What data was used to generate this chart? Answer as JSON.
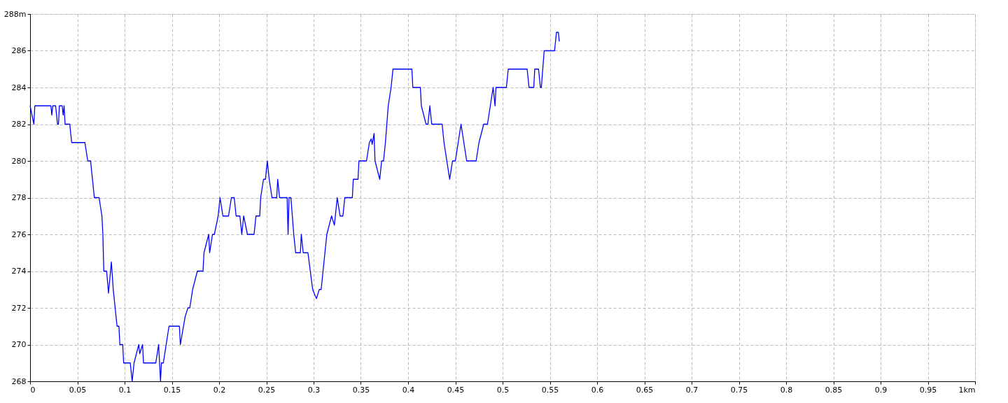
{
  "chart_data": {
    "type": "line",
    "xlim": [
      0,
      1
    ],
    "ylim": [
      268,
      288
    ],
    "xticks": [
      0,
      0.05,
      0.1,
      0.15,
      0.2,
      0.25,
      0.3,
      0.35,
      0.4,
      0.45,
      0.5,
      0.55,
      0.6,
      0.65,
      0.7,
      0.75,
      0.8,
      0.85,
      0.9,
      0.95,
      {
        "value": 1,
        "label": "1km"
      }
    ],
    "yticks": [
      268,
      270,
      272,
      274,
      276,
      278,
      280,
      282,
      284,
      286,
      {
        "value": 288,
        "label": "288m"
      }
    ],
    "grid": true,
    "marker": "none",
    "line_style": "solid",
    "series": [
      {
        "color": "#0000ff",
        "x": [
          0,
          0.004,
          0.005,
          0.022,
          0.023,
          0.024,
          0.027,
          0.029,
          0.03,
          0.031,
          0.034,
          0.035,
          0.036,
          0.037,
          0.042,
          0.044,
          0.058,
          0.061,
          0.064,
          0.068,
          0.073,
          0.076,
          0.077,
          0.078,
          0.081,
          0.083,
          0.086,
          0.088,
          0.09,
          0.092,
          0.094,
          0.095,
          0.098,
          0.099,
          0.106,
          0.108,
          0.11,
          0.115,
          0.116,
          0.119,
          0.12,
          0.133,
          0.136,
          0.138,
          0.139,
          0.141,
          0.144,
          0.147,
          0.158,
          0.159,
          0.164,
          0.167,
          0.169,
          0.172,
          0.177,
          0.183,
          0.184,
          0.189,
          0.19,
          0.193,
          0.195,
          0.199,
          0.201,
          0.204,
          0.21,
          0.213,
          0.216,
          0.218,
          0.222,
          0.224,
          0.226,
          0.23,
          0.237,
          0.239,
          0.243,
          0.244,
          0.247,
          0.249,
          0.251,
          0.253,
          0.256,
          0.261,
          0.262,
          0.264,
          0.272,
          0.273,
          0.274,
          0.276,
          0.279,
          0.281,
          0.286,
          0.287,
          0.289,
          0.294,
          0.299,
          0.303,
          0.306,
          0.308,
          0.312,
          0.314,
          0.319,
          0.322,
          0.325,
          0.328,
          0.331,
          0.333,
          0.341,
          0.342,
          0.347,
          0.348,
          0.356,
          0.359,
          0.361,
          0.362,
          0.364,
          0.365,
          0.37,
          0.372,
          0.374,
          0.376,
          0.379,
          0.382,
          0.384,
          0.404,
          0.405,
          0.413,
          0.414,
          0.419,
          0.421,
          0.423,
          0.425,
          0.436,
          0.438,
          0.441,
          0.444,
          0.447,
          0.45,
          0.453,
          0.456,
          0.459,
          0.462,
          0.472,
          0.475,
          0.48,
          0.484,
          0.487,
          0.49,
          0.492,
          0.493,
          0.504,
          0.506,
          0.526,
          0.528,
          0.533,
          0.534,
          0.538,
          0.54,
          0.541,
          0.544,
          0.555,
          0.557,
          0.559,
          0.56
        ],
        "values": [
          283,
          282,
          283,
          283,
          282.5,
          283,
          283,
          282,
          282,
          283,
          283,
          282.5,
          283,
          282,
          282,
          281,
          281,
          280,
          280,
          278,
          278,
          277,
          276,
          274,
          274,
          272.8,
          274.5,
          273,
          272,
          271,
          271,
          270,
          270,
          269,
          269,
          268,
          269,
          270,
          269.5,
          270,
          269,
          269,
          270,
          268,
          269,
          269,
          270,
          271,
          271,
          270,
          271.5,
          272,
          272,
          273,
          274,
          274,
          275,
          276,
          275,
          276,
          276,
          277,
          278,
          277,
          277,
          278,
          278,
          277,
          277,
          276,
          277,
          276,
          276,
          277,
          277,
          278,
          279,
          279,
          280,
          279,
          278,
          278,
          279,
          278,
          278,
          276,
          278,
          278,
          276,
          275,
          275,
          276,
          275,
          275,
          273,
          272.5,
          273,
          273,
          275,
          276,
          277,
          276.5,
          278,
          277,
          277,
          278,
          278,
          279,
          279,
          280,
          280,
          281,
          281.2,
          280.9,
          281.5,
          280,
          279,
          280,
          280,
          281,
          283,
          284,
          285,
          285,
          284,
          284,
          283,
          282,
          282,
          283,
          282,
          282,
          281,
          280,
          279,
          280,
          280,
          281,
          282,
          281,
          280,
          280,
          281,
          282,
          282,
          283,
          284,
          283,
          284,
          284,
          285,
          285,
          284,
          284,
          285,
          285,
          284,
          284,
          286,
          286,
          287,
          287,
          286.5
        ]
      }
    ]
  }
}
